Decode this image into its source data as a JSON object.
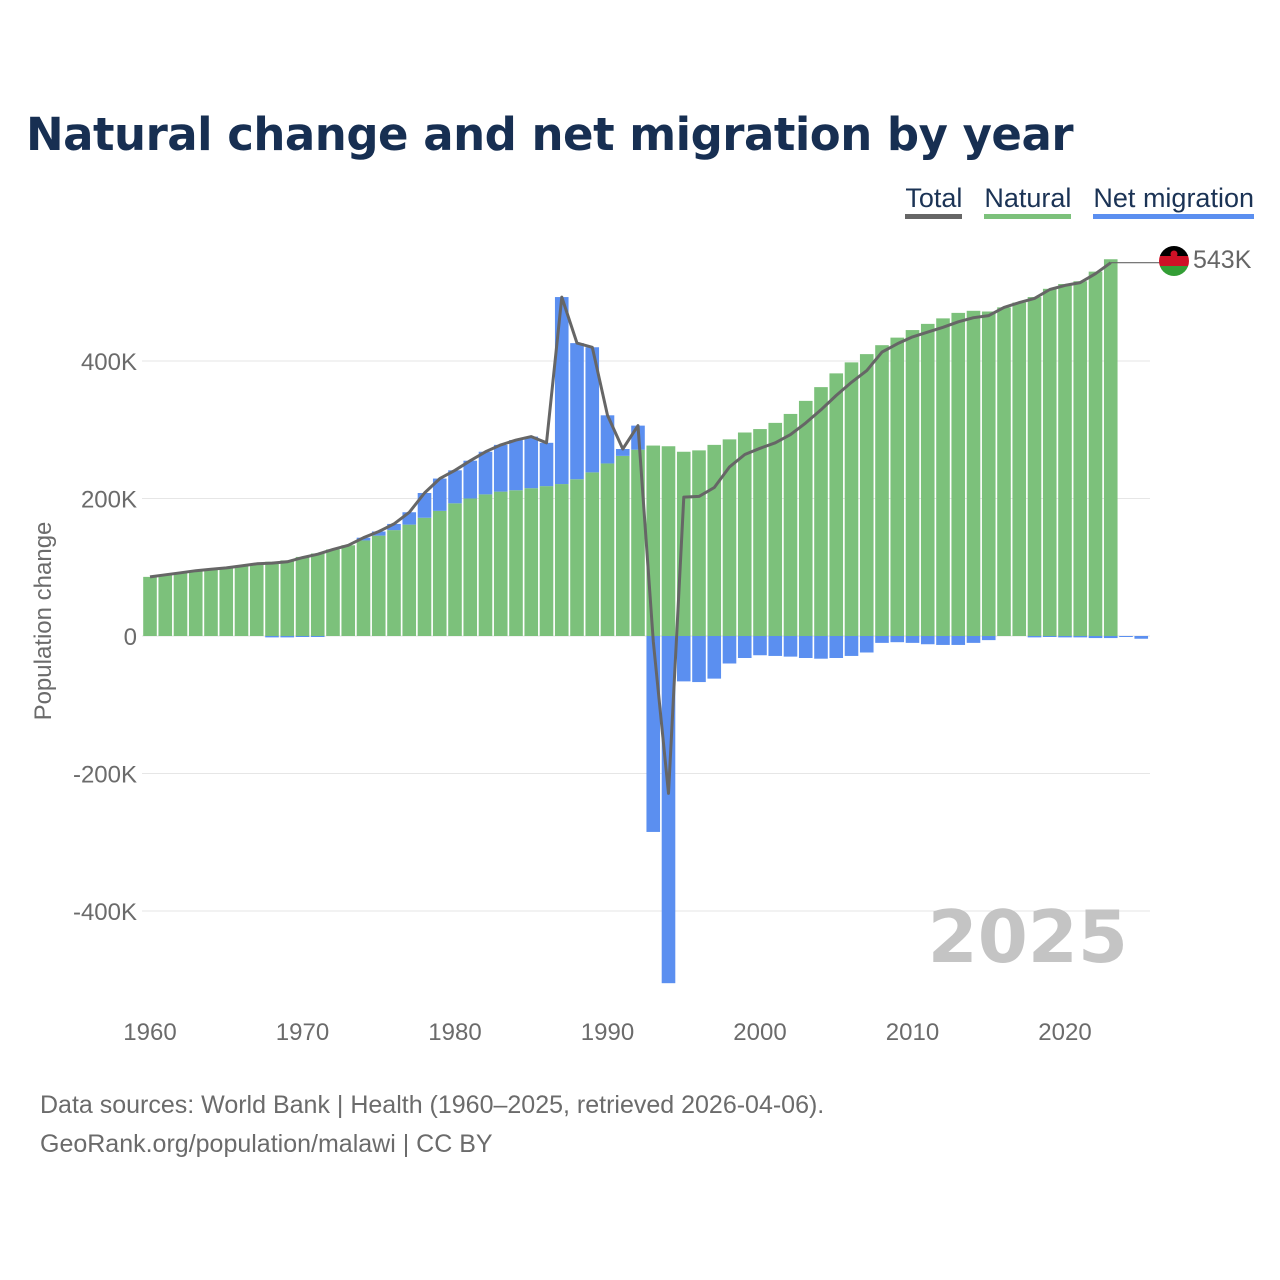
{
  "title": "Natural change and net migration by year",
  "legend": {
    "total": "Total",
    "natural": "Natural",
    "net_migration": "Net migration"
  },
  "source": {
    "line1": "Data sources: World Bank | Health (1960–2025, retrieved 2026-04-06).",
    "line2": "GeoRank.org/population/malawi | CC BY"
  },
  "colors": {
    "natural": "#7cc17b",
    "net_migration": "#5b8ff0",
    "total": "#666666",
    "year_label": "#c4c4c4"
  },
  "chart_data": {
    "type": "bar",
    "ylabel": "Population change",
    "ylim": [
      -510000,
      560000
    ],
    "xlim": [
      1959.5,
      2025.5
    ],
    "yticks": [
      {
        "value": 400000,
        "label": "400K"
      },
      {
        "value": 200000,
        "label": "200K"
      },
      {
        "value": 0,
        "label": "0"
      },
      {
        "value": -200000,
        "label": "-200K"
      },
      {
        "value": -400000,
        "label": "-400K"
      }
    ],
    "xticks": [
      {
        "value": 1960,
        "label": "1960"
      },
      {
        "value": 1970,
        "label": "1970"
      },
      {
        "value": 1980,
        "label": "1980"
      },
      {
        "value": 1990,
        "label": "1990"
      },
      {
        "value": 2000,
        "label": "2000"
      },
      {
        "value": 2010,
        "label": "2010"
      },
      {
        "value": 2020,
        "label": "2020"
      }
    ],
    "year_label": "2025",
    "end_label": "543K",
    "flag_icon": "malawi-flag-icon",
    "x": [
      1960,
      1961,
      1962,
      1963,
      1964,
      1965,
      1966,
      1967,
      1968,
      1969,
      1970,
      1971,
      1972,
      1973,
      1974,
      1975,
      1976,
      1977,
      1978,
      1979,
      1980,
      1981,
      1982,
      1983,
      1984,
      1985,
      1986,
      1987,
      1988,
      1989,
      1990,
      1991,
      1992,
      1993,
      1994,
      1995,
      1996,
      1997,
      1998,
      1999,
      2000,
      2001,
      2002,
      2003,
      2004,
      2005,
      2006,
      2007,
      2008,
      2009,
      2010,
      2011,
      2012,
      2013,
      2014,
      2015,
      2016,
      2017,
      2018,
      2019,
      2020,
      2021,
      2022,
      2023,
      2024,
      2025
    ],
    "series": [
      {
        "name": "Natural",
        "values": [
          86000,
          89000,
          92000,
          95000,
          97000,
          99000,
          102000,
          105000,
          108000,
          110000,
          115000,
          120000,
          126000,
          132000,
          139000,
          146000,
          154000,
          162000,
          172000,
          182000,
          193000,
          200000,
          206000,
          210000,
          212000,
          215000,
          218000,
          221000,
          228000,
          238000,
          251000,
          262000,
          271000,
          277000,
          276000,
          268000,
          270000,
          278000,
          286000,
          296000,
          301000,
          310000,
          323000,
          342000,
          362000,
          382000,
          398000,
          410000,
          423000,
          434000,
          445000,
          454000,
          462000,
          470000,
          473000,
          472000,
          478000,
          485000,
          493000,
          505000,
          512000,
          516000,
          530000,
          548000,
          0,
          0
        ]
      },
      {
        "name": "Net migration",
        "values": [
          0,
          0,
          0,
          0,
          0,
          0,
          0,
          0,
          -2000,
          -2000,
          -1000,
          -1000,
          0,
          0,
          4000,
          6000,
          9000,
          18000,
          36000,
          47000,
          48000,
          55000,
          62000,
          68000,
          73000,
          75000,
          63000,
          272000,
          198000,
          182000,
          70000,
          10000,
          35000,
          -285000,
          -505000,
          -66000,
          -67000,
          -62000,
          -40000,
          -32000,
          -28000,
          -29000,
          -30000,
          -32000,
          -33000,
          -32000,
          -29000,
          -24000,
          -10000,
          -9000,
          -10000,
          -12000,
          -13000,
          -13000,
          -10000,
          -6000,
          0,
          0,
          -2000,
          -1000,
          -2000,
          -2000,
          -3000,
          -3000,
          -1000,
          -4000
        ]
      },
      {
        "name": "Total",
        "values": [
          86000,
          89000,
          92000,
          95000,
          97000,
          99000,
          102000,
          105000,
          106000,
          108000,
          114000,
          119000,
          126000,
          132000,
          143000,
          152000,
          163000,
          180000,
          208000,
          229000,
          241000,
          255000,
          268000,
          278000,
          285000,
          290000,
          281000,
          493000,
          426000,
          420000,
          321000,
          272000,
          306000,
          -8000,
          -229000,
          202000,
          203000,
          216000,
          246000,
          264000,
          273000,
          281000,
          293000,
          310000,
          329000,
          350000,
          369000,
          386000,
          413000,
          425000,
          435000,
          442000,
          449000,
          457000,
          463000,
          466000,
          478000,
          485000,
          491000,
          504000,
          510000,
          514000,
          527000,
          543000,
          null,
          null
        ]
      }
    ]
  }
}
